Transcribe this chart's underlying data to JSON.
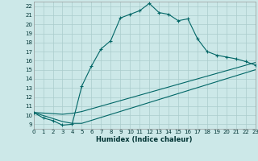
{
  "xlabel": "Humidex (Indice chaleur)",
  "background_color": "#cce8e8",
  "grid_color": "#aacccc",
  "line_color": "#006666",
  "x_min": 0,
  "x_max": 23,
  "y_min": 8.5,
  "y_max": 22.5,
  "yticks": [
    9,
    10,
    11,
    12,
    13,
    14,
    15,
    16,
    17,
    18,
    19,
    20,
    21,
    22
  ],
  "xticks": [
    0,
    1,
    2,
    3,
    4,
    5,
    6,
    7,
    8,
    9,
    10,
    11,
    12,
    13,
    14,
    15,
    16,
    17,
    18,
    19,
    20,
    21,
    22,
    23
  ],
  "line1_x": [
    0,
    1,
    2,
    3,
    4,
    5,
    6,
    7,
    8,
    9,
    10,
    11,
    12,
    13,
    14,
    15,
    16,
    17,
    18,
    19,
    20,
    21,
    22,
    23
  ],
  "line1_y": [
    10.3,
    9.7,
    9.4,
    8.9,
    9.0,
    13.2,
    15.4,
    17.3,
    18.2,
    20.7,
    21.1,
    21.5,
    22.3,
    21.3,
    21.1,
    20.4,
    20.6,
    18.4,
    17.0,
    16.6,
    16.4,
    16.2,
    15.9,
    15.5
  ],
  "line2_x": [
    0,
    3,
    4,
    5,
    23
  ],
  "line2_y": [
    10.3,
    10.1,
    10.2,
    10.4,
    15.8
  ],
  "line3_x": [
    0,
    3,
    4,
    5,
    23
  ],
  "line3_y": [
    10.3,
    9.3,
    9.1,
    9.1,
    15.0
  ]
}
